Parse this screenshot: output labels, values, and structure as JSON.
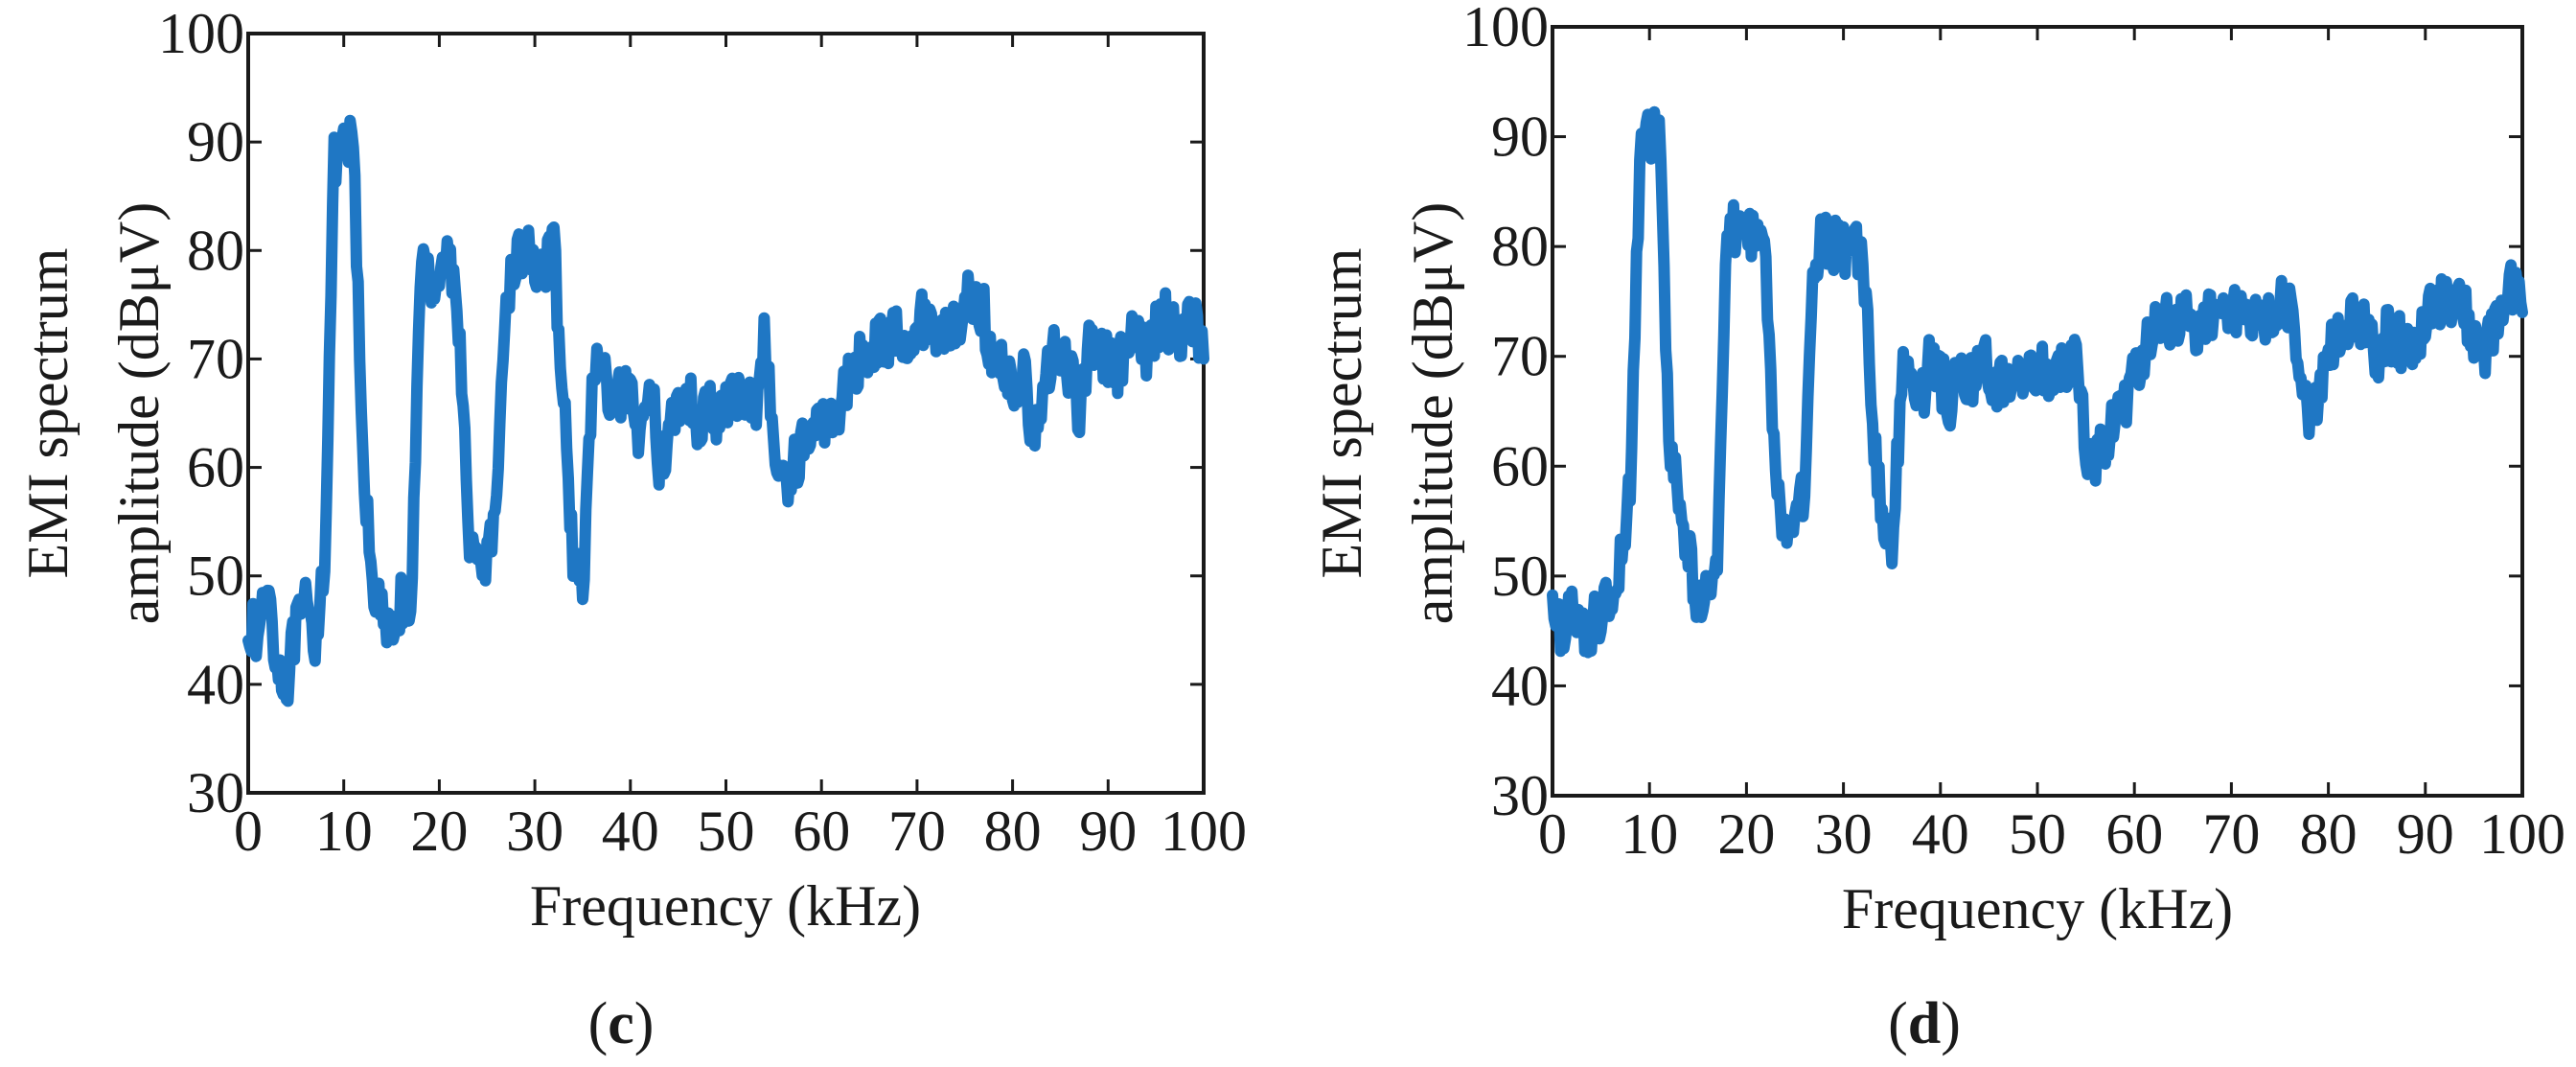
{
  "chart_data": [
    {
      "type": "line",
      "panel_label": "c",
      "xlabel": "Frequency (kHz)",
      "ylabel_line1": "EMI spectrum",
      "ylabel_line2": "amplitude (dBμV)",
      "xlim": [
        0,
        100
      ],
      "ylim": [
        30,
        100
      ],
      "x_ticks": [
        0,
        10,
        20,
        30,
        40,
        50,
        60,
        70,
        80,
        90,
        100
      ],
      "y_ticks": [
        30,
        40,
        50,
        60,
        70,
        80,
        90,
        100
      ],
      "grid": false,
      "color": "#1f77c4",
      "series": [
        {
          "name": "EMI spectrum",
          "x": [
            0,
            1,
            2,
            3,
            4,
            5,
            6,
            7,
            8,
            9,
            10,
            11,
            12,
            13,
            14,
            15,
            16,
            17,
            18,
            19,
            20,
            21,
            22,
            23,
            24,
            25,
            26,
            27,
            28,
            29,
            30,
            31,
            32,
            33,
            34,
            35,
            36,
            37,
            38,
            39,
            40,
            41,
            42,
            43,
            44,
            45,
            46,
            47,
            48,
            49,
            50,
            51,
            52,
            53,
            54,
            55,
            56,
            57,
            58,
            59,
            60,
            61,
            62,
            63,
            64,
            65,
            66,
            67,
            68,
            69,
            70,
            71,
            72,
            73,
            74,
            75,
            76,
            77,
            78,
            79,
            80,
            81,
            82,
            83,
            84,
            85,
            86,
            87,
            88,
            89,
            90,
            91,
            92,
            93,
            94,
            95,
            96,
            97,
            98,
            99,
            100
          ],
          "y": [
            46,
            44,
            50,
            42,
            40,
            45,
            47,
            44,
            52,
            88,
            89,
            90,
            60,
            50,
            46,
            44,
            48,
            45,
            79,
            77,
            78,
            80,
            74,
            55,
            50,
            52,
            55,
            76,
            79,
            80,
            79,
            78,
            80,
            66,
            52,
            48,
            68,
            70,
            64,
            67,
            66,
            62,
            70,
            60,
            63,
            66,
            67,
            64,
            66,
            64,
            66,
            66,
            67,
            65,
            72,
            62,
            58,
            60,
            62,
            63,
            64,
            65,
            66,
            68,
            70,
            71,
            72,
            71,
            73,
            72,
            73,
            74,
            72,
            73,
            73,
            75,
            76,
            74,
            68,
            70,
            67,
            69,
            64,
            65,
            70,
            71,
            69,
            64,
            72,
            71,
            70,
            69,
            71,
            72,
            70,
            73,
            74,
            72,
            73,
            74,
            70
          ]
        }
      ]
    },
    {
      "type": "line",
      "panel_label": "d",
      "xlabel": "Frequency (kHz)",
      "ylabel_line1": "EMI spectrum",
      "ylabel_line2": "amplitude (dBμV)",
      "xlim": [
        0,
        100
      ],
      "ylim": [
        30,
        100
      ],
      "x_ticks": [
        0,
        10,
        20,
        30,
        40,
        50,
        60,
        70,
        80,
        90,
        100
      ],
      "y_ticks": [
        30,
        40,
        50,
        60,
        70,
        80,
        90,
        100
      ],
      "grid": false,
      "color": "#1f77c4",
      "series": [
        {
          "name": "EMI spectrum",
          "x": [
            0,
            1,
            2,
            3,
            4,
            5,
            6,
            7,
            8,
            9,
            10,
            11,
            12,
            13,
            14,
            15,
            16,
            17,
            18,
            19,
            20,
            21,
            22,
            23,
            24,
            25,
            26,
            27,
            28,
            29,
            30,
            31,
            32,
            33,
            34,
            35,
            36,
            37,
            38,
            39,
            40,
            41,
            42,
            43,
            44,
            45,
            46,
            47,
            48,
            49,
            50,
            51,
            52,
            53,
            54,
            55,
            56,
            57,
            58,
            59,
            60,
            61,
            62,
            63,
            64,
            65,
            66,
            67,
            68,
            69,
            70,
            71,
            72,
            73,
            74,
            75,
            76,
            77,
            78,
            79,
            80,
            81,
            82,
            83,
            84,
            85,
            86,
            87,
            88,
            89,
            90,
            91,
            92,
            93,
            94,
            95,
            96,
            97,
            98,
            99,
            100
          ],
          "y": [
            46,
            45,
            48,
            44,
            45,
            47,
            48,
            52,
            58,
            88,
            90,
            91,
            62,
            57,
            52,
            47,
            50,
            52,
            81,
            82,
            81,
            82,
            78,
            58,
            54,
            55,
            58,
            79,
            81,
            80,
            80,
            79,
            80,
            64,
            55,
            52,
            68,
            69,
            66,
            70,
            68,
            66,
            69,
            67,
            70,
            69,
            67,
            68,
            68,
            68,
            69,
            68,
            68,
            69,
            70,
            62,
            60,
            62,
            64,
            66,
            68,
            70,
            72,
            73,
            73,
            74,
            72,
            73,
            74,
            73,
            75,
            74,
            73,
            74,
            73,
            75,
            74,
            70,
            64,
            66,
            70,
            72,
            72,
            74,
            72,
            70,
            72,
            72,
            70,
            71,
            74,
            75,
            75,
            75,
            74,
            72,
            70,
            72,
            75,
            76,
            74
          ]
        }
      ]
    }
  ]
}
